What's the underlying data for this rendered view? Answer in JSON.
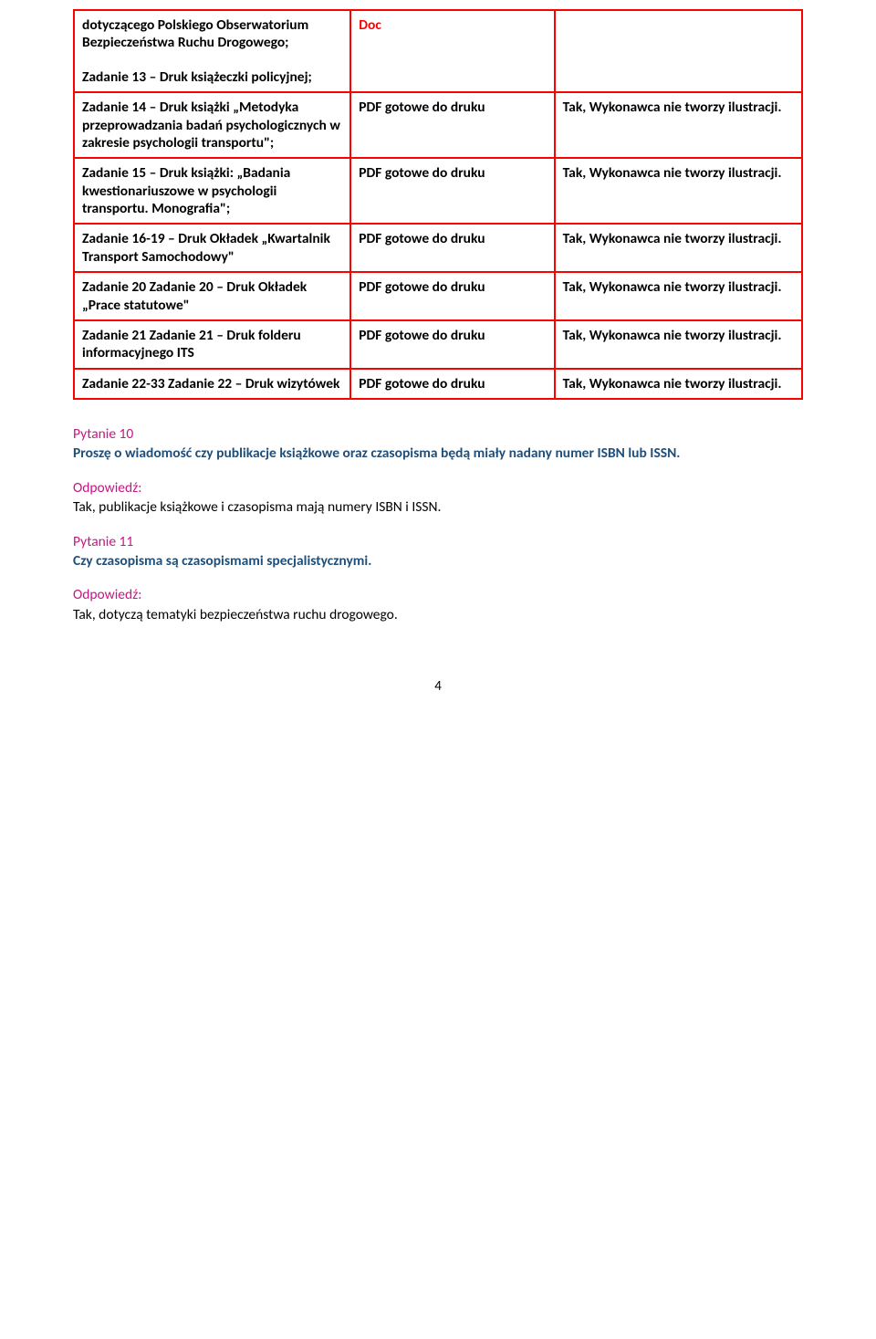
{
  "table": {
    "rows": [
      {
        "c1a": "dotyczącego Polskiego Obserwatorium Bezpieczeństwa Ruchu Drogowego;",
        "c1b": "Zadanie 13 – Druk książeczki policyjnej;",
        "c2": "Doc",
        "c2_class": "doc-red",
        "c3": ""
      },
      {
        "c1": "Zadanie 14 – Druk książki „Metodyka przeprowadzania badań psychologicznych w zakresie psychologii transportu\";",
        "c2": "PDF gotowe do druku",
        "c3": "Tak, Wykonawca nie tworzy ilustracji."
      },
      {
        "c1": "Zadanie 15 – Druk książki: „Badania kwestionariuszowe w psychologii transportu. Monografia\";",
        "c2": "PDF gotowe do druku",
        "c3": "Tak, Wykonawca nie tworzy ilustracji."
      },
      {
        "c1": "Zadanie 16-19 – Druk Okładek „Kwartalnik Transport Samochodowy\"",
        "c2": "PDF gotowe do druku",
        "c3": "Tak, Wykonawca nie tworzy ilustracji."
      },
      {
        "c1": "Zadanie 20 Zadanie 20 – Druk Okładek „Prace statutowe\"",
        "c2": "PDF gotowe do druku",
        "c3": "Tak, Wykonawca nie tworzy ilustracji."
      },
      {
        "c1": "Zadanie 21 Zadanie 21 – Druk folderu informacyjnego ITS",
        "c2": "PDF gotowe do druku",
        "c3": "Tak, Wykonawca nie tworzy ilustracji."
      },
      {
        "c1": "Zadanie 22-33 Zadanie 22 – Druk wizytówek",
        "c2": "PDF gotowe do druku",
        "c3": "Tak, Wykonawca nie tworzy ilustracji."
      }
    ]
  },
  "q10": {
    "label": "Pytanie 10",
    "text": "Proszę o wiadomość czy publikacje książkowe  oraz czasopisma będą miały nadany numer ISBN lub ISSN.",
    "ans_label": "Odpowiedź:",
    "ans_text": "Tak, publikacje książkowe i czasopisma mają numery ISBN i ISSN."
  },
  "q11": {
    "label": "Pytanie 11",
    "text": "Czy czasopisma są czasopismami specjalistycznymi.",
    "ans_label": "Odpowiedź:",
    "ans_text": "Tak, dotyczą tematyki bezpieczeństwa ruchu drogowego."
  },
  "page_number": "4"
}
